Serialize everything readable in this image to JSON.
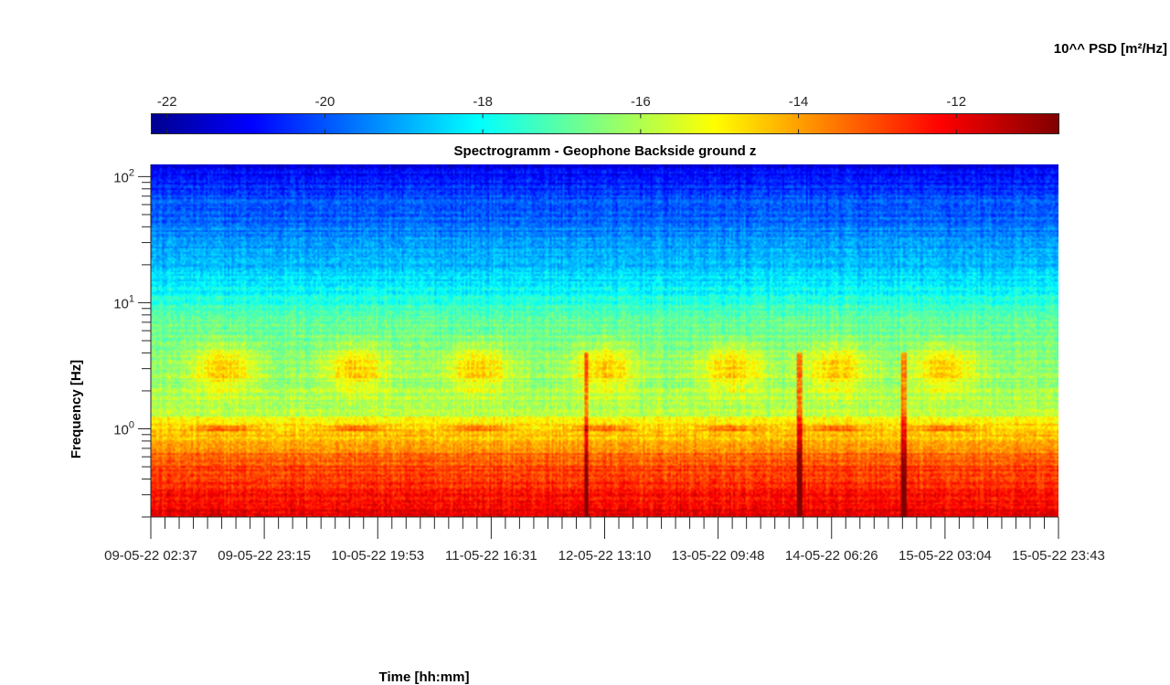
{
  "chart_data": {
    "type": "heatmap",
    "title": "Spectrogramm - Geophone Backside ground z",
    "xlabel": "Time [hh:mm]",
    "ylabel": "Frequency [Hz]",
    "y_scale": "log",
    "ylim": [
      0.2,
      125
    ],
    "y_ticks": [
      {
        "value": 1,
        "base": "10",
        "exp": "0"
      },
      {
        "value": 10,
        "base": "10",
        "exp": "1"
      },
      {
        "value": 100,
        "base": "10",
        "exp": "2"
      }
    ],
    "x_tick_labels": [
      "09-05-22 02:37",
      "09-05-22 23:15",
      "10-05-22 19:53",
      "11-05-22 16:31",
      "12-05-22 13:10",
      "13-05-22 09:48",
      "14-05-22 06:26",
      "15-05-22 03:04",
      "15-05-22 23:43"
    ],
    "colorbar": {
      "label": "10^^ PSD [m²/Hz]",
      "colormap": "jet",
      "range": [
        -22.2,
        -10.7
      ],
      "ticks": [
        -22,
        -20,
        -18,
        -16,
        -14,
        -12
      ]
    },
    "activity_windows_day_fraction": [
      0.08,
      0.225,
      0.36,
      0.5,
      0.64,
      0.755,
      0.875
    ],
    "transient_spikes_day_fraction": [
      0.48,
      0.715,
      0.83
    ],
    "grid": false
  }
}
